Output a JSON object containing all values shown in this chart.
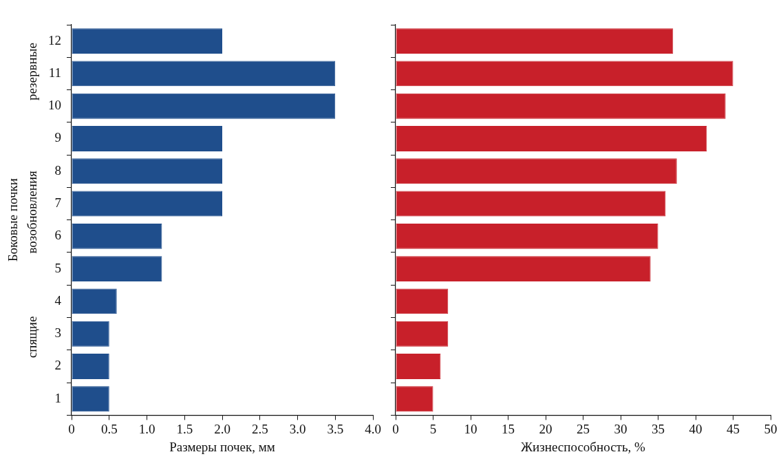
{
  "chart_data": [
    {
      "type": "bar",
      "orientation": "horizontal",
      "categories": [
        "12",
        "11",
        "10",
        "9",
        "8",
        "7",
        "6",
        "5",
        "4",
        "3",
        "2",
        "1"
      ],
      "values": [
        2.0,
        3.5,
        3.5,
        2.0,
        2.0,
        2.0,
        1.2,
        1.2,
        0.6,
        0.5,
        0.5,
        0.5
      ],
      "color": "#1f4e8c",
      "xlim": [
        0,
        4
      ],
      "xticks": [
        0,
        0.5,
        {
          "value": 1,
          "label": "1.0"
        },
        1.5,
        {
          "value": 2,
          "label": "2.0"
        },
        2.5,
        {
          "value": 3,
          "label": "3.0"
        },
        3.5,
        {
          "value": 4,
          "label": "4.0"
        }
      ],
      "xlabel": "Размеры почек, мм",
      "ylabel": "Боковые почки",
      "annotations": [
        "резервные",
        "возобновления",
        "спящие"
      ],
      "grid": false,
      "legend": false
    },
    {
      "type": "bar",
      "orientation": "horizontal",
      "categories": [
        "12",
        "11",
        "10",
        "9",
        "8",
        "7",
        "6",
        "5",
        "4",
        "3",
        "2",
        "1"
      ],
      "values": [
        37,
        45,
        44,
        41.5,
        37.5,
        36,
        35,
        34,
        7,
        7,
        6,
        5
      ],
      "color": "#c8202a",
      "xlim": [
        0,
        50
      ],
      "xticks": [
        0,
        5,
        10,
        15,
        20,
        25,
        30,
        35,
        40,
        45,
        50
      ],
      "xlabel": "Жизнеспособность, %",
      "tick_labels": "x",
      "grid": false,
      "legend": false
    }
  ]
}
